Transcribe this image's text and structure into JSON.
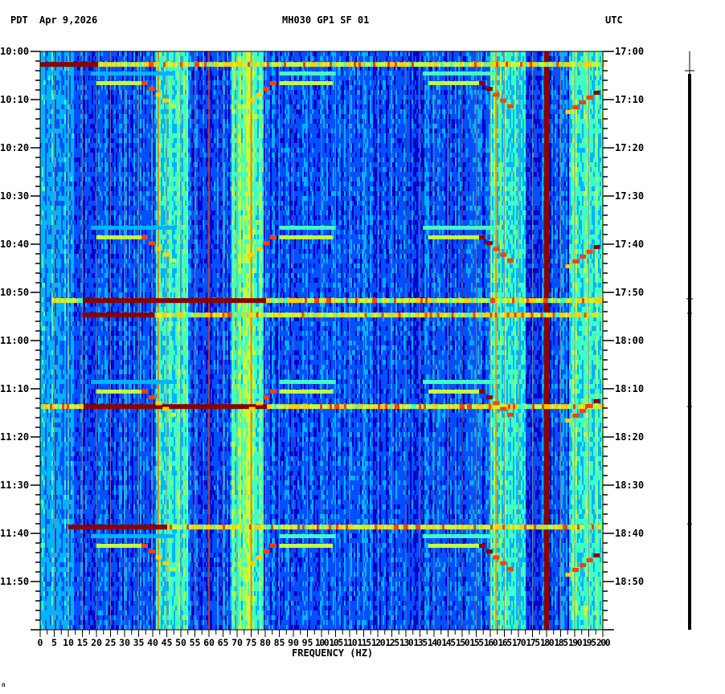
{
  "header": {
    "timezone_left": "PDT",
    "date": "Apr 9,2026",
    "station": "MH030 GP1 SF 01",
    "timezone_right": "UTC"
  },
  "corner_mark": "∩",
  "chart_data": {
    "type": "heatmap",
    "title": "MH030 GP1 SF 01",
    "subtitle": "Apr 9,2026",
    "xlabel": "FREQUENCY (HZ)",
    "ylabel_left": "PDT",
    "ylabel_right": "UTC",
    "xlim": [
      0,
      200
    ],
    "x_ticks": [
      0,
      5,
      10,
      15,
      20,
      25,
      30,
      35,
      40,
      45,
      50,
      55,
      60,
      65,
      70,
      75,
      80,
      85,
      90,
      95,
      100,
      105,
      110,
      115,
      120,
      125,
      130,
      135,
      140,
      145,
      150,
      155,
      160,
      165,
      170,
      175,
      180,
      185,
      190,
      195,
      200
    ],
    "x_tick_labels": [
      "0",
      "5",
      "10",
      "15",
      "20",
      "25",
      "30",
      "35",
      "40",
      "45",
      "50",
      "55",
      "60",
      "65",
      "70",
      "75",
      "80",
      "85",
      "90",
      "95",
      "100",
      "105",
      "110",
      "115",
      "120",
      "125",
      "130",
      "135",
      "140",
      "145",
      "150",
      "155",
      "160",
      "165",
      "170",
      "175",
      "180",
      "185",
      "190",
      "195",
      "200"
    ],
    "y_ticks_left": [
      "10:00",
      "10:10",
      "10:20",
      "10:30",
      "10:40",
      "10:50",
      "11:00",
      "11:10",
      "11:20",
      "11:30",
      "11:40",
      "11:50"
    ],
    "y_ticks_right": [
      "17:00",
      "17:10",
      "17:20",
      "17:30",
      "17:40",
      "17:50",
      "18:00",
      "18:10",
      "18:20",
      "18:30",
      "18:40",
      "18:50"
    ],
    "time_span_minutes": 120,
    "colormap": [
      "#0000c8",
      "#0050ff",
      "#00b4ff",
      "#40ffc0",
      "#c0ff40",
      "#ffd000",
      "#ff4000",
      "#8b0000"
    ],
    "background_level": "blue (low power)",
    "persistent_lines_hz": [
      {
        "hz": 60,
        "level": "high",
        "color": "#c83c14"
      },
      {
        "hz": 180,
        "level": "very high",
        "color": "#8b0000"
      },
      {
        "hz": 42,
        "level": "medium",
        "color": "#ff8000"
      },
      {
        "hz": 75,
        "level": "medium",
        "color": "#ff8000"
      },
      {
        "hz": 162,
        "level": "medium",
        "color": "#ff8000"
      }
    ],
    "broadband_bands_hz": [
      {
        "from": 41,
        "to": 52,
        "level": "cyan/green"
      },
      {
        "from": 68,
        "to": 79,
        "level": "green/yellow"
      },
      {
        "from": 160,
        "to": 172,
        "level": "cyan/yellow"
      },
      {
        "from": 188,
        "to": 200,
        "level": "cyan/yellow"
      }
    ],
    "horizontal_events": [
      {
        "minute": 2.7,
        "from_hz": 0,
        "to_hz": 200,
        "peak": "0-20 Hz",
        "level": "very high"
      },
      {
        "minute": 51.7,
        "from_hz": 4,
        "to_hz": 200,
        "peak": "15-80 Hz",
        "level": "very high"
      },
      {
        "minute": 54.7,
        "from_hz": 15,
        "to_hz": 200,
        "peak": "15-40 Hz",
        "level": "very high"
      },
      {
        "minute": 73.7,
        "from_hz": 0,
        "to_hz": 200,
        "peak": "15-80 Hz",
        "level": "very high"
      },
      {
        "minute": 98.7,
        "from_hz": 10,
        "to_hz": 200,
        "peak": "10-45 Hz",
        "level": "very high"
      }
    ],
    "chirp_sweeps": [
      {
        "start_minute": 4.5,
        "groups": 1
      },
      {
        "start_minute": 36.5,
        "groups": 1
      },
      {
        "start_minute": 68.5,
        "groups": 1
      },
      {
        "start_minute": 100.5,
        "groups": 1
      }
    ]
  }
}
